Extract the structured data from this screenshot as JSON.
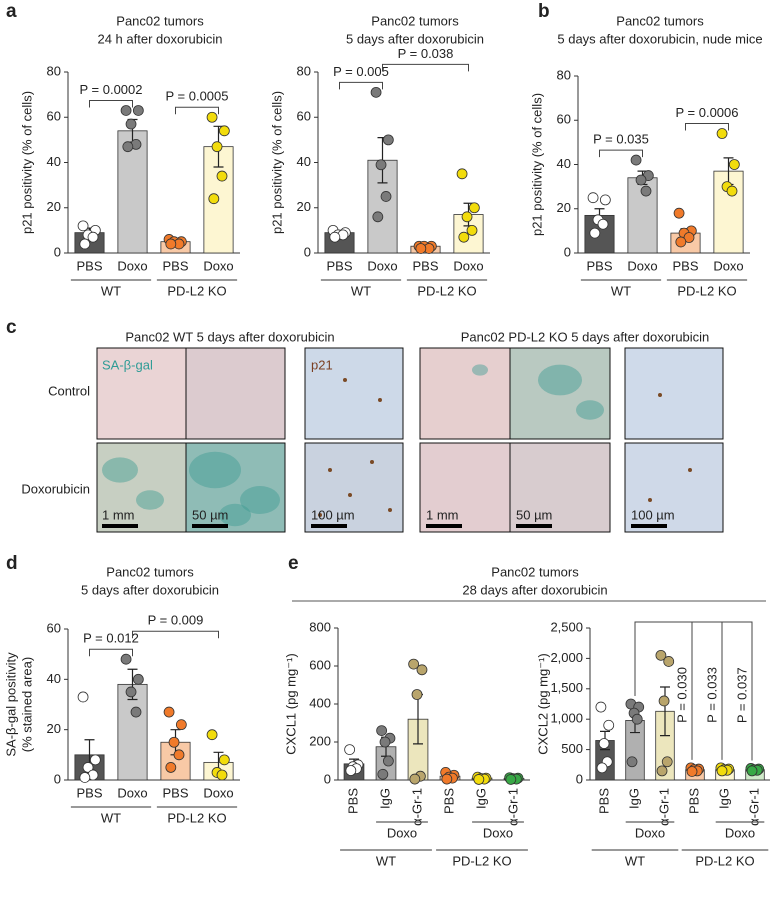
{
  "panel_letters": [
    "a",
    "b",
    "c",
    "d",
    "e"
  ],
  "panel_c": {
    "left_title": "Panc02 WT 5 days after doxorubicin",
    "right_title": "Panc02 PD-L2 KO 5 days after doxorubicin",
    "row_labels": [
      "Control",
      "Doxorubicin"
    ],
    "stain_labels": [
      "SA-β-gal",
      "p21"
    ],
    "scale_bars": [
      "1 mm",
      "50 µm",
      "100 µm",
      "1 mm",
      "50 µm",
      "100 µm"
    ]
  },
  "panel_e": {
    "title": "Panc02 tumors",
    "subtitle": "28 days after doxorubicin"
  },
  "chart_data": [
    {
      "type": "bar",
      "title": "Panc02 tumors",
      "subtitle": "24 h after doxorubicin",
      "ylabel": "p21 positivity (% of cells)",
      "categories": [
        "PBS",
        "Doxo",
        "PBS",
        "Doxo"
      ],
      "groups": [
        "WT",
        "PD-L2 KO"
      ],
      "values": [
        9,
        54,
        5,
        47
      ],
      "errors": [
        2,
        5,
        0.7,
        9
      ],
      "points": [
        [
          12,
          10,
          8,
          7,
          4
        ],
        [
          63,
          63,
          57,
          48,
          47
        ],
        [
          6,
          5,
          5,
          4,
          4
        ],
        [
          60,
          54,
          47,
          34,
          24
        ]
      ],
      "colors": [
        "#555555",
        "#c9c9c9",
        "#f8c9a6",
        "#fdf6d2"
      ],
      "point_colors": [
        "#ffffff",
        "#7a7a7a",
        "#f07a2a",
        "#f2dc0c"
      ],
      "ylim": [
        0,
        80
      ],
      "yticks": [
        0,
        20,
        40,
        60,
        80
      ],
      "annotations": [
        {
          "text": "P = 0.0002",
          "from": 0,
          "to": 1
        },
        {
          "text": "P = 0.0005",
          "from": 2,
          "to": 3
        }
      ]
    },
    {
      "type": "bar",
      "title": "Panc02 tumors",
      "subtitle": "5 days after doxorubicin",
      "ylabel": "p21 positivity (% of cells)",
      "categories": [
        "PBS",
        "Doxo",
        "PBS",
        "Doxo"
      ],
      "groups": [
        "WT",
        "PD-L2 KO"
      ],
      "values": [
        9,
        41,
        3,
        17
      ],
      "errors": [
        1,
        10,
        0.4,
        5
      ],
      "points": [
        [
          10,
          9,
          8,
          8,
          7
        ],
        [
          71,
          50,
          39,
          25,
          16
        ],
        [
          3,
          3,
          3,
          2,
          2
        ],
        [
          35,
          20,
          16,
          10,
          7
        ]
      ],
      "colors": [
        "#555555",
        "#c9c9c9",
        "#f8c9a6",
        "#fdf6d2"
      ],
      "point_colors": [
        "#ffffff",
        "#7a7a7a",
        "#f07a2a",
        "#f2dc0c"
      ],
      "ylim": [
        0,
        80
      ],
      "yticks": [
        0,
        20,
        40,
        60,
        80
      ],
      "annotations": [
        {
          "text": "P = 0.005",
          "from": 0,
          "to": 1
        },
        {
          "text": "P = 0.038",
          "from": 1,
          "to": 3
        }
      ]
    },
    {
      "type": "bar",
      "title": "Panc02 tumors",
      "subtitle": "5 days after doxorubicin, nude mice",
      "ylabel": "p21 positivity (% of cells)",
      "categories": [
        "PBS",
        "Doxo",
        "PBS",
        "Doxo"
      ],
      "groups": [
        "WT",
        "PD-L2 KO"
      ],
      "values": [
        17,
        34,
        9,
        37
      ],
      "errors": [
        3,
        3,
        2,
        6
      ],
      "points": [
        [
          25,
          24,
          15,
          13,
          9
        ],
        [
          42,
          35,
          33,
          28
        ],
        [
          18,
          10,
          9,
          7,
          5
        ],
        [
          54,
          40,
          30,
          28
        ]
      ],
      "colors": [
        "#555555",
        "#c9c9c9",
        "#f8c9a6",
        "#fdf6d2"
      ],
      "point_colors": [
        "#ffffff",
        "#7a7a7a",
        "#f07a2a",
        "#f2dc0c"
      ],
      "ylim": [
        0,
        80
      ],
      "yticks": [
        0,
        20,
        40,
        60,
        80
      ],
      "annotations": [
        {
          "text": "P = 0.035",
          "from": 0,
          "to": 1
        },
        {
          "text": "P = 0.0006",
          "from": 2,
          "to": 3
        }
      ]
    },
    {
      "type": "bar",
      "title": "Panc02 tumors",
      "subtitle": "5 days after doxorubicin",
      "ylabel": [
        "SA-β-gal positivity",
        "(% stained area)"
      ],
      "categories": [
        "PBS",
        "Doxo",
        "PBS",
        "Doxo"
      ],
      "groups": [
        "WT",
        "PD-L2 KO"
      ],
      "values": [
        10,
        38,
        15,
        7
      ],
      "errors": [
        6,
        6,
        5,
        4
      ],
      "points": [
        [
          33,
          8,
          5,
          2,
          1
        ],
        [
          48,
          40,
          35,
          27
        ],
        [
          27,
          22,
          15,
          10,
          5
        ],
        [
          18,
          8,
          3,
          2
        ]
      ],
      "colors": [
        "#555555",
        "#c9c9c9",
        "#f8c9a6",
        "#fdf6d2"
      ],
      "point_colors": [
        "#ffffff",
        "#7a7a7a",
        "#f07a2a",
        "#f2dc0c"
      ],
      "ylim": [
        0,
        60
      ],
      "yticks": [
        0,
        20,
        40,
        60
      ],
      "annotations": [
        {
          "text": "P = 0.012",
          "from": 0,
          "to": 1
        },
        {
          "text": "P = 0.009",
          "from": 1,
          "to": 3
        }
      ]
    },
    {
      "type": "bar",
      "ylabel": "CXCL1 (pg mg⁻¹)",
      "categories": [
        "PBS",
        "IgG",
        "α-Gr-1",
        "PBS",
        "IgG",
        "α-Gr-1"
      ],
      "groups": [
        "WT",
        "PD-L2 KO"
      ],
      "subgroups": [
        "Doxo",
        "Doxo"
      ],
      "values": [
        85,
        175,
        320,
        20,
        10,
        8
      ],
      "errors": [
        25,
        50,
        130,
        5,
        3,
        2
      ],
      "points": [
        [
          160,
          80,
          70,
          60,
          50
        ],
        [
          260,
          220,
          200,
          100,
          30
        ],
        [
          610,
          580,
          450,
          20,
          5
        ],
        [
          40,
          25,
          15,
          10,
          5
        ],
        [
          15,
          10,
          8,
          5,
          3
        ],
        [
          12,
          10,
          7,
          5,
          3
        ]
      ],
      "colors": [
        "#555555",
        "#b0b0b0",
        "#ece6bd",
        "#f8c9a6",
        "#fdf6d2",
        "#cfe9c9"
      ],
      "point_colors": [
        "#ffffff",
        "#7a7a7a",
        "#b9a56c",
        "#f07a2a",
        "#f2dc0c",
        "#38a846"
      ],
      "ylim": [
        0,
        800
      ],
      "yticks": [
        0,
        200,
        400,
        600,
        800
      ],
      "annotations": []
    },
    {
      "type": "bar",
      "ylabel": "CXCL2 (pg mg⁻¹)",
      "categories": [
        "PBS",
        "IgG",
        "α-Gr-1",
        "PBS",
        "IgG",
        "α-Gr-1"
      ],
      "groups": [
        "WT",
        "PD-L2 KO"
      ],
      "subgroups": [
        "Doxo",
        "Doxo"
      ],
      "values": [
        650,
        980,
        1130,
        170,
        170,
        170
      ],
      "errors": [
        150,
        200,
        400,
        20,
        20,
        15
      ],
      "points": [
        [
          1200,
          900,
          600,
          300,
          200
        ],
        [
          1250,
          1200,
          1100,
          1000,
          300
        ],
        [
          2050,
          1950,
          1300,
          300,
          150
        ],
        [
          200,
          180,
          170,
          150,
          140
        ],
        [
          200,
          180,
          170,
          160,
          150
        ],
        [
          190,
          180,
          170,
          160,
          150
        ]
      ],
      "colors": [
        "#555555",
        "#b0b0b0",
        "#ece6bd",
        "#f8c9a6",
        "#fdf6d2",
        "#cfe9c9"
      ],
      "point_colors": [
        "#ffffff",
        "#7a7a7a",
        "#b9a56c",
        "#f07a2a",
        "#f2dc0c",
        "#38a846"
      ],
      "ylim": [
        0,
        2500
      ],
      "yticks": [
        0,
        {
          "value": 500,
          "label": "500"
        },
        {
          "value": 1000,
          "label": "1,000"
        },
        {
          "value": 1500,
          "label": "1,500"
        },
        {
          "value": 2000,
          "label": "2,000"
        },
        {
          "value": 2500,
          "label": "2,500"
        }
      ],
      "annotations": [
        {
          "text": "P = 0.030",
          "from": 1,
          "to": 3
        },
        {
          "text": "P = 0.033",
          "from": 1,
          "to": 4
        },
        {
          "text": "P = 0.037",
          "from": 1,
          "to": 5
        }
      ]
    }
  ]
}
